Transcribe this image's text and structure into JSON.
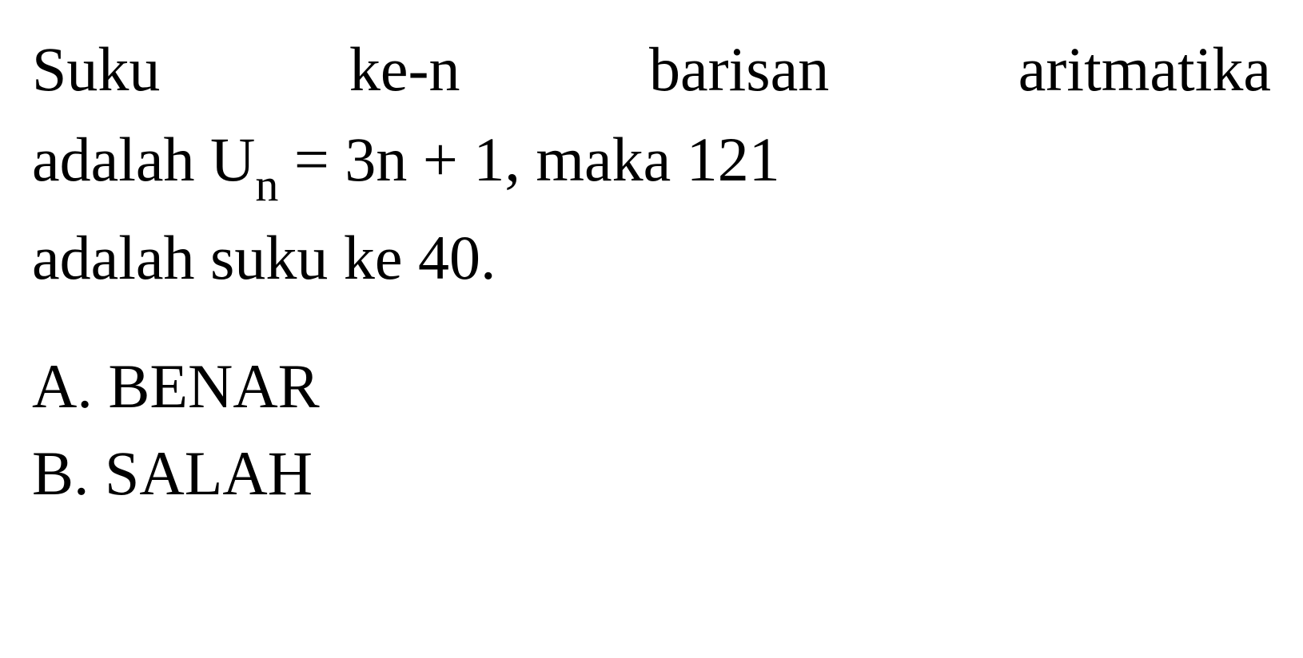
{
  "question": {
    "line1_word1": "Suku",
    "line1_word2": "ke-n",
    "line1_word3": "barisan",
    "line1_word4": "aritmatika",
    "line2_part1": "adalah U",
    "line2_sub": "n",
    "line2_part2": " = 3n + 1, maka 121",
    "line3": "adalah suku ke 40."
  },
  "options": {
    "a": "A. BENAR",
    "b": "B. SALAH"
  },
  "styling": {
    "font_family": "Times New Roman",
    "text_color": "#000000",
    "background_color": "#ffffff",
    "main_fontsize": 78,
    "sub_fontsize": 58,
    "line_height": 1.45
  }
}
